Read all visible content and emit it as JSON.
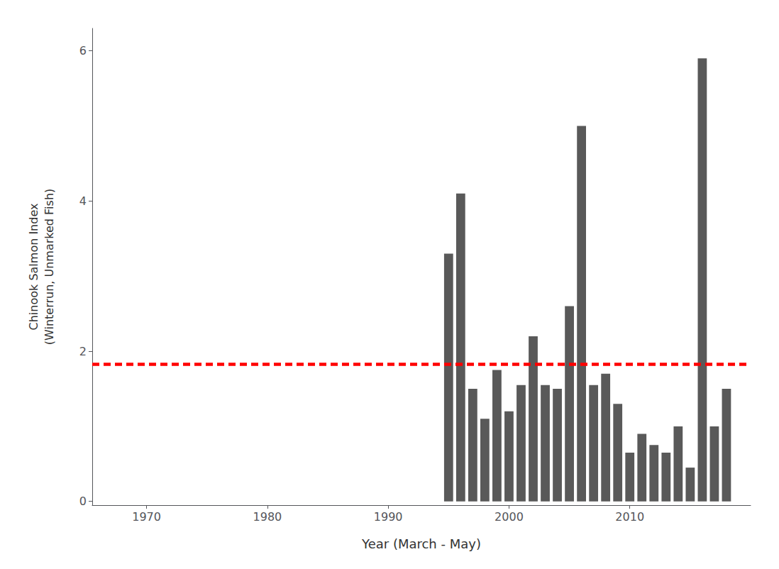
{
  "chart_data": {
    "type": "bar",
    "x": [
      1995,
      1996,
      1997,
      1998,
      1999,
      2000,
      2001,
      2002,
      2003,
      2004,
      2005,
      2006,
      2007,
      2008,
      2009,
      2010,
      2011,
      2012,
      2013,
      2014,
      2015,
      2016,
      2017,
      2018
    ],
    "values": [
      3.3,
      4.1,
      1.5,
      1.1,
      1.75,
      1.2,
      1.55,
      2.2,
      1.55,
      1.5,
      2.6,
      5.0,
      1.55,
      1.7,
      1.3,
      0.65,
      0.9,
      0.75,
      0.65,
      1.0,
      0.45,
      5.9,
      1.0,
      1.5
    ],
    "color": "#595959",
    "xlabel": "Year (March - May)",
    "ylabel": "Chinook Salmon Index\n(Winterrun, Unmarked Fish)",
    "xlim": [
      1965.5,
      2020
    ],
    "xticks": [
      1970,
      1980,
      1990,
      2000,
      2010
    ],
    "ylim": [
      -0.05,
      6.3
    ],
    "yticks": [
      0,
      2,
      4,
      6
    ],
    "grid": false,
    "reference_line": {
      "y": 1.83,
      "color": "#FF0000",
      "line_style": "dashed"
    }
  }
}
